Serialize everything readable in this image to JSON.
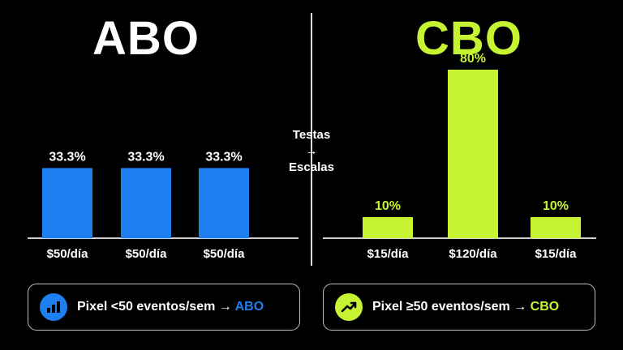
{
  "colors": {
    "abo": "#1e7ff0",
    "cbo": "#c6f432",
    "text": "#ffffff",
    "axis": "#cfcfcf"
  },
  "abo": {
    "title": "ABO"
  },
  "cbo": {
    "title": "CBO"
  },
  "middle": {
    "line1": "Testas",
    "arrow": "→",
    "line2": "Escalas"
  },
  "callouts": {
    "abo": {
      "icon": "bar-chart-icon",
      "text": "Pixel <50 eventos/sem → ",
      "highlight": "ABO"
    },
    "cbo": {
      "icon": "trending-up-icon",
      "text": "Pixel ≥50 eventos/sem → ",
      "highlight": "CBO"
    }
  },
  "chart_data": [
    {
      "type": "bar",
      "title": "ABO",
      "categories": [
        "$50/día",
        "$50/día",
        "$50/día"
      ],
      "values": [
        33.3,
        33.3,
        33.3
      ],
      "data_labels": [
        "33.3%",
        "33.3%",
        "33.3%"
      ],
      "ylim": [
        0,
        100
      ],
      "color": "#1e7ff0"
    },
    {
      "type": "bar",
      "title": "CBO",
      "categories": [
        "$15/día",
        "$120/día",
        "$15/día"
      ],
      "values": [
        10,
        80,
        10
      ],
      "data_labels": [
        "10%",
        "80%",
        "10%"
      ],
      "ylim": [
        0,
        100
      ],
      "color": "#c6f432"
    }
  ]
}
